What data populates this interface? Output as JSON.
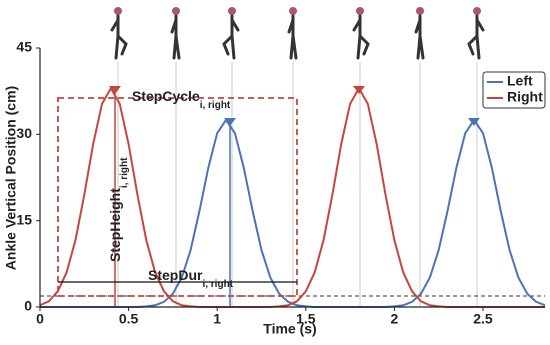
{
  "chart_data": {
    "type": "line",
    "xlabel": "Time (s)",
    "ylabel": "Ankle Vertical Position (cm)",
    "x": [
      0,
      0.05,
      0.1,
      0.15,
      0.2,
      0.25,
      0.3,
      0.35,
      0.4,
      0.45,
      0.5,
      0.55,
      0.6,
      0.65,
      0.7,
      0.75,
      0.8,
      0.85,
      0.9,
      0.95,
      1,
      1.05,
      1.1,
      1.15,
      1.2,
      1.25,
      1.3,
      1.35,
      1.4,
      1.45,
      1.5,
      1.55,
      1.6,
      1.65,
      1.7,
      1.75,
      1.8,
      1.85,
      1.9,
      1.95,
      2,
      2.05,
      2.1,
      2.15,
      2.2,
      2.25,
      2.3,
      2.35,
      2.4,
      2.45,
      2.5,
      2.55,
      2.6,
      2.65,
      2.7,
      2.75,
      2.8,
      2.85
    ],
    "series": [
      {
        "name": "Left",
        "color": "#4a74b4",
        "values": [
          0,
          0,
          0,
          0,
          0,
          0,
          0,
          0,
          0,
          0,
          0,
          0,
          0.1,
          0.3,
          0.9,
          2.3,
          5.1,
          9.9,
          16.7,
          24.2,
          30.2,
          32.5,
          30.2,
          24.2,
          16.7,
          9.9,
          5.1,
          2.3,
          0.9,
          0.3,
          0.1,
          0,
          0,
          0,
          0,
          0,
          0,
          0,
          0,
          0,
          0.1,
          0.3,
          0.9,
          2.3,
          5.1,
          9.9,
          16.7,
          24.2,
          30.2,
          32.5,
          30.2,
          24.2,
          16.7,
          9.9,
          5.1,
          2.3,
          0.9,
          0.3
        ]
      },
      {
        "name": "Right",
        "color": "#c6453f",
        "values": [
          0.3,
          1.0,
          2.7,
          6.0,
          11.6,
          19.5,
          28.3,
          35.3,
          38,
          35.3,
          28.3,
          19.5,
          11.6,
          6.0,
          2.7,
          1.0,
          0.3,
          0.1,
          0,
          0,
          0,
          0,
          0,
          0,
          0,
          0,
          0,
          0.1,
          0.3,
          1.0,
          2.7,
          6.0,
          11.6,
          19.5,
          28.3,
          35.3,
          38,
          35.3,
          28.3,
          19.5,
          11.6,
          6.0,
          2.7,
          1.0,
          0.3,
          0.1,
          0,
          0,
          0,
          0,
          0,
          0,
          0,
          0,
          0,
          0,
          0,
          0
        ]
      }
    ],
    "xlim": [
      0,
      2.85
    ],
    "ylim": [
      0,
      45
    ],
    "xticks": [
      0,
      0.5,
      1,
      1.5,
      2,
      2.5
    ],
    "yticks": [
      0,
      15,
      30,
      45
    ],
    "legend": "upper right",
    "annotations": [
      {
        "text": "StepCycle",
        "subscript": "i, right"
      },
      {
        "text": "StepHeight",
        "subscript": "i, right"
      },
      {
        "text": "StepDur",
        "subscript": "i, right"
      }
    ]
  }
}
